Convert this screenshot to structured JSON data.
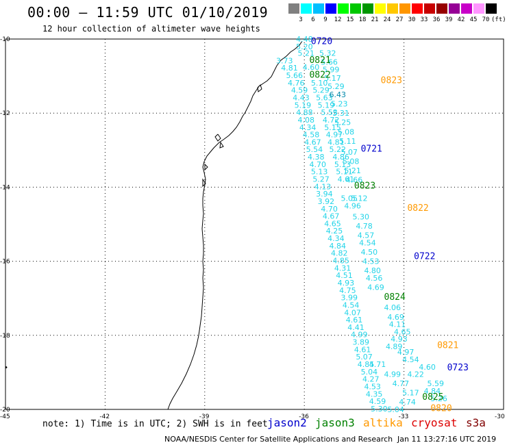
{
  "header": {
    "title": "00:00 – 11:59 UTC 01/10/2019",
    "subtitle": "12 hour collection of altimeter wave heights"
  },
  "colorbar": {
    "colors": [
      "#808080",
      "#00ffff",
      "#00bfff",
      "#0000ff",
      "#00ff00",
      "#00c800",
      "#009600",
      "#ffff00",
      "#ffc800",
      "#ff9600",
      "#ff0000",
      "#c80000",
      "#960000",
      "#960096",
      "#c800c8",
      "#ff96ff",
      "#000000"
    ],
    "labels": [
      "3",
      "6",
      "9",
      "12",
      "15",
      "18",
      "21",
      "24",
      "27",
      "30",
      "33",
      "36",
      "39",
      "42",
      "45",
      "70",
      "(ft)"
    ]
  },
  "axes": {
    "lat_labels": [
      "-10",
      "-12",
      "-14",
      "-16",
      "-18",
      "-20"
    ],
    "lon_labels": [
      "-45",
      "-42",
      "-39",
      "-36",
      "-33",
      "-30"
    ]
  },
  "passes": [
    {
      "label": "0720",
      "color": "#0000cc",
      "lon": -35.8,
      "lat": -10.05
    },
    {
      "label": "0821",
      "color": "#008000",
      "lon": -35.85,
      "lat": -10.55
    },
    {
      "label": "0822",
      "color": "#008000",
      "lon": -35.85,
      "lat": -10.95
    },
    {
      "label": "0823",
      "color": "#ff9900",
      "lon": -33.7,
      "lat": -11.1
    },
    {
      "label": "0721",
      "color": "#0000cc",
      "lon": -34.3,
      "lat": -12.95
    },
    {
      "label": "0823",
      "color": "#008000",
      "lon": -34.5,
      "lat": -13.95
    },
    {
      "label": "0822",
      "color": "#ff9900",
      "lon": -32.9,
      "lat": -14.55
    },
    {
      "label": "0722",
      "color": "#0000cc",
      "lon": -32.7,
      "lat": -15.85
    },
    {
      "label": "0824",
      "color": "#008000",
      "lon": -33.6,
      "lat": -16.95
    },
    {
      "label": "0821",
      "color": "#ff9900",
      "lon": -32.0,
      "lat": -18.25
    },
    {
      "label": "0723",
      "color": "#0000cc",
      "lon": -31.7,
      "lat": -18.85
    },
    {
      "label": "0825",
      "color": "#008000",
      "lon": -32.45,
      "lat": -19.65
    },
    {
      "label": "0820",
      "color": "#ff9900",
      "lon": -32.2,
      "lat": -19.95
    }
  ],
  "wave_heights": [
    {
      "v": "4.48",
      "lon": -36.25,
      "lat": -10.0
    },
    {
      "v": "5.20",
      "lon": -36.25,
      "lat": -10.2
    },
    {
      "v": "5.21",
      "lon": -36.2,
      "lat": -10.38
    },
    {
      "v": "3.73",
      "lon": -36.85,
      "lat": -10.58
    },
    {
      "v": "4.81",
      "lon": -36.7,
      "lat": -10.78
    },
    {
      "v": "4.60",
      "lon": -36.05,
      "lat": -10.76
    },
    {
      "v": "5.66",
      "lon": -36.55,
      "lat": -10.98
    },
    {
      "v": "4.76",
      "lon": -36.5,
      "lat": -11.18
    },
    {
      "v": "5.10",
      "lon": -35.8,
      "lat": -11.18
    },
    {
      "v": "4.59",
      "lon": -36.4,
      "lat": -11.38
    },
    {
      "v": "5.29",
      "lon": -35.75,
      "lat": -11.38
    },
    {
      "v": "4.43",
      "lon": -36.35,
      "lat": -11.58
    },
    {
      "v": "5.63",
      "lon": -35.65,
      "lat": -11.58
    },
    {
      "v": "5.19",
      "lon": -36.3,
      "lat": -11.78
    },
    {
      "v": "5.19",
      "lon": -35.6,
      "lat": -11.78
    },
    {
      "v": "4.88",
      "lon": -36.25,
      "lat": -11.98
    },
    {
      "v": "5.53",
      "lon": -35.5,
      "lat": -11.98
    },
    {
      "v": "4.08",
      "lon": -36.2,
      "lat": -12.18
    },
    {
      "v": "4.72",
      "lon": -35.45,
      "lat": -12.18
    },
    {
      "v": "4.34",
      "lon": -36.15,
      "lat": -12.38
    },
    {
      "v": "5.15",
      "lon": -35.4,
      "lat": -12.38
    },
    {
      "v": "4.58",
      "lon": -36.05,
      "lat": -12.58
    },
    {
      "v": "4.97",
      "lon": -35.35,
      "lat": -12.58
    },
    {
      "v": "4.67",
      "lon": -36.0,
      "lat": -12.78
    },
    {
      "v": "4.81",
      "lon": -35.3,
      "lat": -12.78
    },
    {
      "v": "5.54",
      "lon": -35.95,
      "lat": -12.98
    },
    {
      "v": "5.22",
      "lon": -35.25,
      "lat": -12.98
    },
    {
      "v": "4.38",
      "lon": -35.9,
      "lat": -13.18
    },
    {
      "v": "4.86",
      "lon": -35.15,
      "lat": -13.18
    },
    {
      "v": "4.70",
      "lon": -35.85,
      "lat": -13.38
    },
    {
      "v": "5.13",
      "lon": -35.1,
      "lat": -13.38
    },
    {
      "v": "5.13",
      "lon": -35.8,
      "lat": -13.58
    },
    {
      "v": "5.11",
      "lon": -35.05,
      "lat": -13.58
    },
    {
      "v": "5.27",
      "lon": -35.75,
      "lat": -13.78
    },
    {
      "v": "4.61",
      "lon": -35.0,
      "lat": -13.78
    },
    {
      "v": "4.13",
      "lon": -35.7,
      "lat": -13.98
    },
    {
      "v": "3.94",
      "lon": -35.65,
      "lat": -14.18
    },
    {
      "v": "5.05",
      "lon": -34.9,
      "lat": -14.3
    },
    {
      "v": "3.92",
      "lon": -35.6,
      "lat": -14.38
    },
    {
      "v": "4.70",
      "lon": -35.5,
      "lat": -14.58
    },
    {
      "v": "4.96",
      "lon": -34.8,
      "lat": -14.5
    },
    {
      "v": "4.67",
      "lon": -35.45,
      "lat": -14.78
    },
    {
      "v": "4.65",
      "lon": -35.4,
      "lat": -14.98
    },
    {
      "v": "4.25",
      "lon": -35.35,
      "lat": -15.18
    },
    {
      "v": "4.34",
      "lon": -35.3,
      "lat": -15.38
    },
    {
      "v": "4.84",
      "lon": -35.25,
      "lat": -15.58
    },
    {
      "v": "4.82",
      "lon": -35.2,
      "lat": -15.78
    },
    {
      "v": "4.85",
      "lon": -35.15,
      "lat": -15.98
    },
    {
      "v": "4.31",
      "lon": -35.1,
      "lat": -16.18
    },
    {
      "v": "4.51",
      "lon": -35.05,
      "lat": -16.38
    },
    {
      "v": "4.93",
      "lon": -35.0,
      "lat": -16.58
    },
    {
      "v": "4.75",
      "lon": -34.95,
      "lat": -16.78
    },
    {
      "v": "3.99",
      "lon": -34.9,
      "lat": -16.98
    },
    {
      "v": "4.54",
      "lon": -34.85,
      "lat": -17.18
    },
    {
      "v": "4.07",
      "lon": -34.8,
      "lat": -17.38
    },
    {
      "v": "4.61",
      "lon": -34.75,
      "lat": -17.58
    },
    {
      "v": "4.41",
      "lon": -34.7,
      "lat": -17.78
    },
    {
      "v": "4.99",
      "lon": -34.6,
      "lat": -17.98
    },
    {
      "v": "3.89",
      "lon": -34.55,
      "lat": -18.18
    },
    {
      "v": "4.61",
      "lon": -34.5,
      "lat": -18.38
    },
    {
      "v": "5.07",
      "lon": -34.45,
      "lat": -18.58
    },
    {
      "v": "4.85",
      "lon": -34.4,
      "lat": -18.78
    },
    {
      "v": "5.04",
      "lon": -34.3,
      "lat": -18.98
    },
    {
      "v": "4.27",
      "lon": -34.25,
      "lat": -19.18
    },
    {
      "v": "4.53",
      "lon": -34.2,
      "lat": -19.38
    },
    {
      "v": "4.35",
      "lon": -34.15,
      "lat": -19.58
    },
    {
      "v": "4.59",
      "lon": -34.05,
      "lat": -19.78
    },
    {
      "v": "5.30",
      "lon": -34.0,
      "lat": -19.98
    },
    {
      "v": "5.32",
      "lon": -35.55,
      "lat": -10.38
    },
    {
      "v": "5.66",
      "lon": -35.5,
      "lat": -10.62
    },
    {
      "v": "5.99",
      "lon": -35.45,
      "lat": -10.82
    },
    {
      "v": "5.17",
      "lon": -35.4,
      "lat": -11.05
    },
    {
      "v": "5.29",
      "lon": -35.3,
      "lat": -11.28
    },
    {
      "v": "6.43",
      "lon": -35.25,
      "lat": -11.5
    },
    {
      "v": "5.23",
      "lon": -35.2,
      "lat": -11.75
    },
    {
      "v": "5.31",
      "lon": -35.15,
      "lat": -12.0
    },
    {
      "v": "5.25",
      "lon": -35.1,
      "lat": -12.25
    },
    {
      "v": "5.08",
      "lon": -35.0,
      "lat": -12.5
    },
    {
      "v": "5.11",
      "lon": -34.95,
      "lat": -12.75
    },
    {
      "v": "5.07",
      "lon": -34.9,
      "lat": -13.05
    },
    {
      "v": "5.08",
      "lon": -34.85,
      "lat": -13.3
    },
    {
      "v": "5.21",
      "lon": -34.8,
      "lat": -13.55
    },
    {
      "v": "4.66",
      "lon": -34.75,
      "lat": -13.8
    },
    {
      "v": "5.12",
      "lon": -34.6,
      "lat": -14.3
    },
    {
      "v": "5.30",
      "lon": -34.55,
      "lat": -14.8
    },
    {
      "v": "4.78",
      "lon": -34.45,
      "lat": -15.05
    },
    {
      "v": "4.57",
      "lon": -34.4,
      "lat": -15.3
    },
    {
      "v": "4.54",
      "lon": -34.35,
      "lat": -15.5
    },
    {
      "v": "4.50",
      "lon": -34.3,
      "lat": -15.75
    },
    {
      "v": "4.53",
      "lon": -34.25,
      "lat": -16.0
    },
    {
      "v": "4.80",
      "lon": -34.2,
      "lat": -16.25
    },
    {
      "v": "4.56",
      "lon": -34.15,
      "lat": -16.45
    },
    {
      "v": "4.69",
      "lon": -34.1,
      "lat": -16.7
    },
    {
      "v": "4.06",
      "lon": -33.6,
      "lat": -17.25
    },
    {
      "v": "4.69",
      "lon": -33.5,
      "lat": -17.5
    },
    {
      "v": "4.11",
      "lon": -33.45,
      "lat": -17.7
    },
    {
      "v": "4.65",
      "lon": -33.3,
      "lat": -17.9
    },
    {
      "v": "4.93",
      "lon": -33.4,
      "lat": -18.1
    },
    {
      "v": "4.89",
      "lon": -33.55,
      "lat": -18.3
    },
    {
      "v": "4.97",
      "lon": -33.2,
      "lat": -18.45
    },
    {
      "v": "4.54",
      "lon": -33.05,
      "lat": -18.65
    },
    {
      "v": "4.71",
      "lon": -34.05,
      "lat": -18.78
    },
    {
      "v": "4.60",
      "lon": -32.55,
      "lat": -18.85
    },
    {
      "v": "4.99",
      "lon": -33.6,
      "lat": -19.05
    },
    {
      "v": "4.22",
      "lon": -32.9,
      "lat": -19.05
    },
    {
      "v": "4.77",
      "lon": -33.35,
      "lat": -19.3
    },
    {
      "v": "5.59",
      "lon": -32.3,
      "lat": -19.3
    },
    {
      "v": "5.17",
      "lon": -33.05,
      "lat": -19.55
    },
    {
      "v": "4.84",
      "lon": -32.4,
      "lat": -19.5
    },
    {
      "v": "5.26",
      "lon": -32.2,
      "lat": -19.7
    },
    {
      "v": "4.74",
      "lon": -33.15,
      "lat": -19.8
    },
    {
      "v": "5.04",
      "lon": -33.5,
      "lat": -20.0
    }
  ],
  "footer": {
    "note": "note: 1) Time is in UTC; 2) SWH is in feet",
    "legend": [
      {
        "label": "jason2",
        "color": "#0000cc"
      },
      {
        "label": "jason3",
        "color": "#008000"
      },
      {
        "label": "altika",
        "color": "#ff9900"
      },
      {
        "label": "cryosat",
        "color": "#dd0000"
      },
      {
        "label": "s3a",
        "color": "#800000"
      }
    ],
    "credit": "NOAA/NESDIS Center for Satellite Applications and Research",
    "timestamp": "Jan 11 13:27:16 UTC 2019"
  }
}
